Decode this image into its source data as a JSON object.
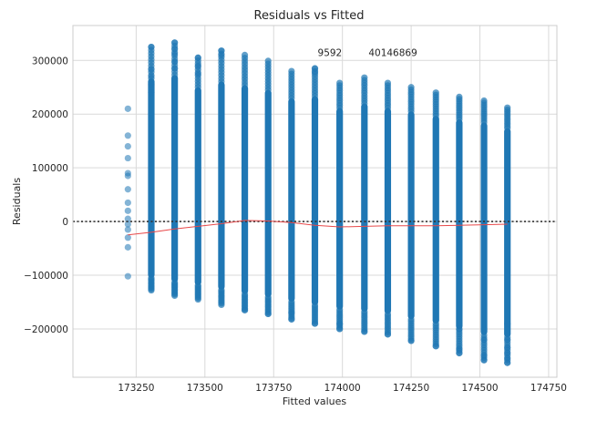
{
  "chart_data": {
    "type": "scatter",
    "title": "Residuals vs Fitted",
    "xlabel": "Fitted values",
    "ylabel": "Residuals",
    "xlim": [
      173020,
      174780
    ],
    "ylim": [
      -290000,
      365000
    ],
    "xticks": [
      173250,
      173500,
      173750,
      174000,
      174250,
      174500,
      174750
    ],
    "yticks": [
      -200000,
      -100000,
      0,
      100000,
      200000,
      300000
    ],
    "grid": true,
    "colors": {
      "points": "#1f77b4",
      "lowess": "#e8494a",
      "zero_line": "#333333"
    },
    "series": [
      {
        "type": "residual_columns",
        "columns": [
          {
            "x": 173220,
            "min": -102000,
            "max": 210000,
            "sparse": true,
            "points": [
              210000,
              160000,
              140000,
              118000,
              90000,
              85000,
              60000,
              35000,
              20000,
              5000,
              -5000,
              -15000,
              -30000,
              -48000,
              -102000
            ]
          },
          {
            "x": 173305,
            "min": -128000,
            "max": 325000,
            "outliers": [
              325000,
              283000,
              270000,
              255000,
              240000
            ]
          },
          {
            "x": 173390,
            "min": -138000,
            "max": 333000,
            "outliers": [
              333000,
              322000,
              312000,
              298000,
              285000
            ]
          },
          {
            "x": 173475,
            "min": -145000,
            "max": 305000,
            "outliers": [
              305000,
              290000,
              275000
            ]
          },
          {
            "x": 173560,
            "min": -155000,
            "max": 318000,
            "outliers": [
              318000,
              310000
            ]
          },
          {
            "x": 173645,
            "min": -165000,
            "max": 310000,
            "outliers": [
              -165000
            ]
          },
          {
            "x": 173730,
            "min": -172000,
            "max": 299000,
            "outliers": [
              -172000
            ]
          },
          {
            "x": 173815,
            "min": -182000,
            "max": 280000,
            "outliers": [
              -182000,
              -170000
            ]
          },
          {
            "x": 173900,
            "min": -190000,
            "max": 285000,
            "outliers": [
              285000,
              278000,
              -190000
            ]
          },
          {
            "x": 173990,
            "min": -200000,
            "max": 258000,
            "outliers": [
              -200000,
              -190000
            ]
          },
          {
            "x": 174080,
            "min": -205000,
            "max": 268000,
            "outliers": [
              -205000
            ]
          },
          {
            "x": 174165,
            "min": -210000,
            "max": 258000,
            "outliers": [
              -210000
            ]
          },
          {
            "x": 174250,
            "min": -222000,
            "max": 250000,
            "outliers": [
              -222000
            ]
          },
          {
            "x": 174340,
            "min": -232000,
            "max": 240000,
            "outliers": [
              -232000
            ]
          },
          {
            "x": 174425,
            "min": -245000,
            "max": 232000,
            "outliers": [
              -245000,
              -238000,
              -200000
            ]
          },
          {
            "x": 174515,
            "min": -258000,
            "max": 225000,
            "outliers": [
              -258000,
              -250000,
              -220000
            ]
          },
          {
            "x": 174600,
            "min": -263000,
            "max": 212000,
            "outliers": [
              -263000,
              -255000,
              -245000,
              -235000,
              -220000,
              -190000
            ]
          }
        ]
      }
    ],
    "lowess": [
      [
        173220,
        -25000
      ],
      [
        173305,
        -20000
      ],
      [
        173390,
        -14000
      ],
      [
        173475,
        -9000
      ],
      [
        173560,
        -4000
      ],
      [
        173645,
        2000
      ],
      [
        173730,
        1000
      ],
      [
        173815,
        -2000
      ],
      [
        173900,
        -7000
      ],
      [
        173990,
        -10000
      ],
      [
        174080,
        -9000
      ],
      [
        174165,
        -8000
      ],
      [
        174250,
        -8000
      ],
      [
        174340,
        -8000
      ],
      [
        174425,
        -7000
      ],
      [
        174515,
        -6000
      ],
      [
        174600,
        -5000
      ]
    ],
    "annotations": [
      {
        "text": "9592",
        "x": 173910,
        "y": 308000
      },
      {
        "text": "40146869",
        "x": 174095,
        "y": 308000
      }
    ]
  }
}
